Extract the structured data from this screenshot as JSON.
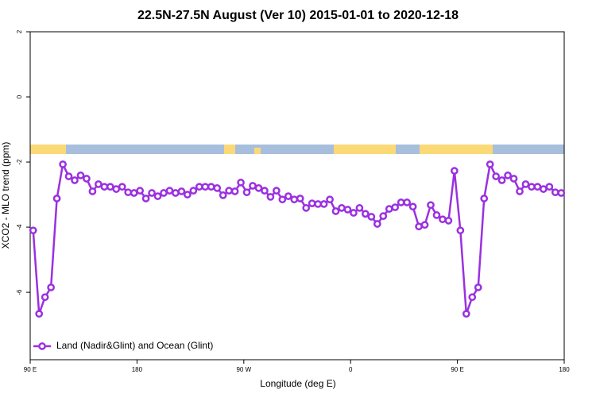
{
  "chart_data": {
    "type": "line",
    "title": "22.5N-27.5N August (Ver 10)   2015-01-01 to 2020-12-18",
    "x_label": "Longitude (deg E)",
    "y_label": "XCO2 - MLO trend (ppm)",
    "xlim": [
      90,
      540
    ],
    "ylim": [
      -8.07,
      2
    ],
    "xticks": [
      {
        "value": 90,
        "label": "90 E"
      },
      180,
      {
        "value": 270,
        "label": "90 W"
      },
      {
        "value": 360,
        "label": "0"
      },
      {
        "value": 450,
        "label": "90 E"
      },
      {
        "value": 540,
        "label": "180"
      }
    ],
    "yticks": [
      2,
      0,
      -2,
      -4,
      -6
    ],
    "legend": "bottom-left",
    "x": [
      92.5,
      97.5,
      102.5,
      107.5,
      112.5,
      117.5,
      122.5,
      127.5,
      132.5,
      137.5,
      142.5,
      147.5,
      152.5,
      157.5,
      162.5,
      167.5,
      172.5,
      177.5,
      182.5,
      187.5,
      192.5,
      197.5,
      202.5,
      207.5,
      212.5,
      217.5,
      222.5,
      227.5,
      232.5,
      237.5,
      242.5,
      247.5,
      252.5,
      257.5,
      262.5,
      267.5,
      272.5,
      277.5,
      282.5,
      287.5,
      292.5,
      297.5,
      302.5,
      307.5,
      312.5,
      317.5,
      322.5,
      327.5,
      332.5,
      337.5,
      342.5,
      347.5,
      352.5,
      357.5,
      362.5,
      367.5,
      372.5,
      377.5,
      382.5,
      387.5,
      392.5,
      397.5,
      402.5,
      407.5,
      412.5,
      417.5,
      422.5,
      427.5,
      432.5,
      437.5,
      442.5,
      447.5,
      452.5,
      457.5,
      462.5,
      467.5,
      472.5,
      477.5,
      482.5,
      487.5,
      492.5,
      497.5,
      502.5,
      507.5,
      512.5,
      517.5,
      522.5,
      527.5,
      532.5,
      537.5
    ],
    "series": [
      {
        "name": "Land (Nadir&Glint) and Ocean (Glint)",
        "color": "#9b30e0",
        "values": [
          -4.1,
          -6.66,
          -6.15,
          -5.85,
          -3.12,
          -2.07,
          -2.44,
          -2.56,
          -2.41,
          -2.51,
          -2.9,
          -2.68,
          -2.76,
          -2.76,
          -2.83,
          -2.76,
          -2.93,
          -2.95,
          -2.88,
          -3.12,
          -2.95,
          -3.05,
          -2.95,
          -2.88,
          -2.95,
          -2.9,
          -3.0,
          -2.88,
          -2.76,
          -2.76,
          -2.76,
          -2.8,
          -3.02,
          -2.88,
          -2.9,
          -2.63,
          -2.93,
          -2.73,
          -2.8,
          -2.88,
          -3.07,
          -2.88,
          -3.15,
          -3.05,
          -3.15,
          -3.12,
          -3.41,
          -3.27,
          -3.29,
          -3.29,
          -3.15,
          -3.51,
          -3.41,
          -3.46,
          -3.56,
          -3.41,
          -3.59,
          -3.68,
          -3.9,
          -3.66,
          -3.44,
          -3.39,
          -3.24,
          -3.24,
          -3.37,
          -3.98,
          -3.93,
          -3.32,
          -3.63,
          -3.76,
          -3.8,
          -2.27,
          -4.1,
          -6.66,
          -6.15,
          -5.85,
          -3.12,
          -2.07,
          -2.44,
          -2.56,
          -2.41,
          -2.51,
          -2.9,
          -2.68,
          -2.76,
          -2.76,
          -2.83,
          -2.76,
          -2.93,
          -2.95
        ]
      }
    ]
  }
}
